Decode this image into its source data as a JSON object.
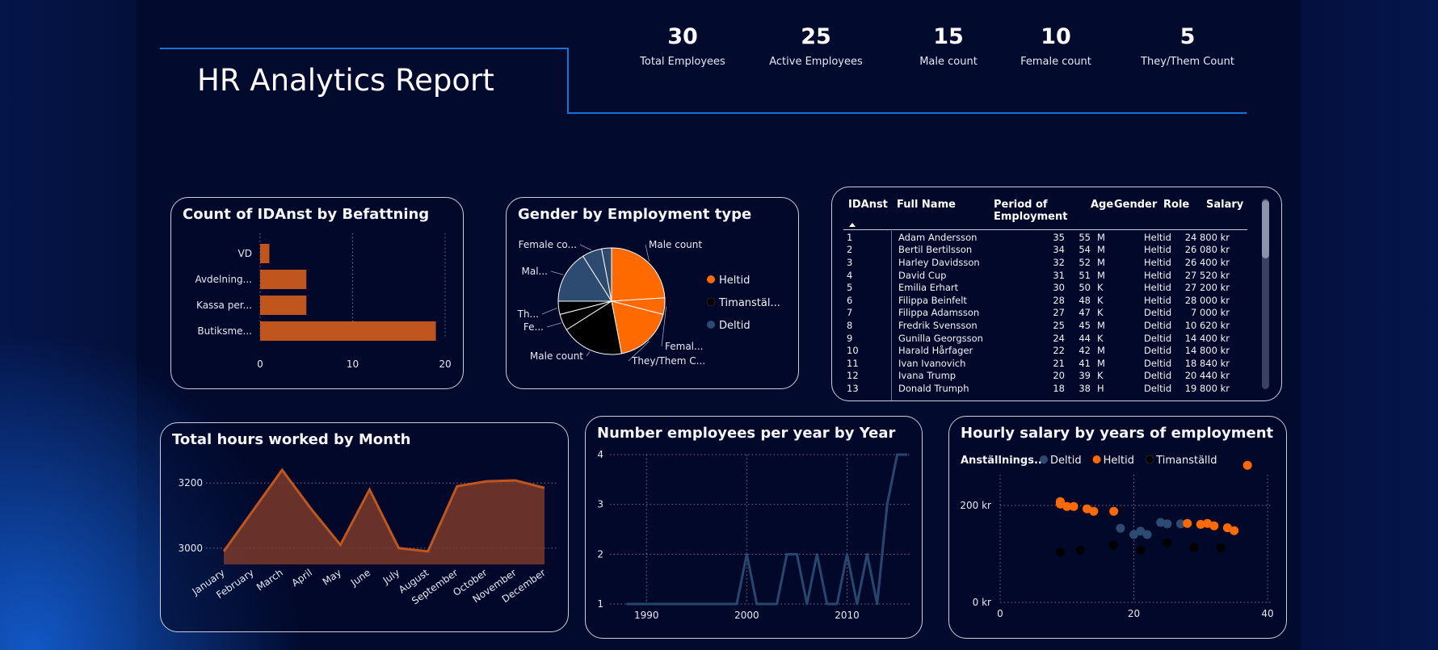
{
  "header": {
    "title": "HR Analytics Report"
  },
  "kpis": [
    {
      "value": "30",
      "label": "Total Employees"
    },
    {
      "value": "25",
      "label": "Active Employees"
    },
    {
      "value": "15",
      "label": "Male count"
    },
    {
      "value": "10",
      "label": "Female count"
    },
    {
      "value": "5",
      "label": "They/Them Count"
    }
  ],
  "colors": {
    "accent_line": "#1673d8",
    "bar": "#c0561e",
    "orange": "#ff6a00",
    "deltid": "#2d4a70",
    "timanstalld": "#000000",
    "line": "#27486e"
  },
  "chart_data": [
    {
      "id": "befattning",
      "type": "bar",
      "orientation": "horizontal",
      "title": "Count of IDAnst by Befattning",
      "categories": [
        "VD",
        "Avdelning...",
        "Kassa per...",
        "Butiksme..."
      ],
      "values": [
        1,
        5,
        5,
        19
      ],
      "xlim": [
        0,
        20
      ],
      "xticks": [
        "0",
        "10",
        "20"
      ]
    },
    {
      "id": "gender_pie",
      "type": "pie",
      "title": "Gender by Employment type",
      "slices": [
        {
          "label": "Male count",
          "group": "Heltid",
          "value": 0.24
        },
        {
          "label": "Femal...",
          "group": "Heltid",
          "value": 0.05
        },
        {
          "label": "They/Them C...",
          "group": "Heltid",
          "value": 0.18
        },
        {
          "label": "Male count",
          "group": "Timanställd",
          "value": 0.19
        },
        {
          "label": "Fe...",
          "group": "Timanställd",
          "value": 0.05
        },
        {
          "label": "Th...",
          "group": "Timanställd",
          "value": 0.04
        },
        {
          "label": "Mal...",
          "group": "Deltid",
          "value": 0.16
        },
        {
          "label": "Female co...",
          "group": "Deltid",
          "value": 0.06
        },
        {
          "label": "",
          "group": "Deltid",
          "value": 0.03
        }
      ],
      "legend": [
        {
          "label": "Heltid",
          "color": "#ff6a00"
        },
        {
          "label": "Timanstäl...",
          "color": "#000000"
        },
        {
          "label": "Deltid",
          "color": "#2d4a70"
        }
      ],
      "legend_position": "right"
    },
    {
      "id": "employees_table",
      "type": "table",
      "columns": [
        "IDAnst",
        "Full Name",
        "Period of Employment",
        "Age",
        "Gender",
        "Role",
        "Salary"
      ],
      "rows": [
        [
          "1",
          "Adam Andersson",
          "35",
          "55",
          "M",
          "Heltid",
          "24 800 kr"
        ],
        [
          "2",
          "Bertil Bertilsson",
          "34",
          "54",
          "M",
          "Heltid",
          "26 080 kr"
        ],
        [
          "3",
          "Harley Davidsson",
          "32",
          "52",
          "M",
          "Heltid",
          "26 400 kr"
        ],
        [
          "4",
          "David Cup",
          "31",
          "51",
          "M",
          "Heltid",
          "27 520 kr"
        ],
        [
          "5",
          "Emilia Erhart",
          "30",
          "50",
          "K",
          "Heltid",
          "27 200 kr"
        ],
        [
          "6",
          "Filippa Beinfelt",
          "28",
          "48",
          "K",
          "Heltid",
          "28 000 kr"
        ],
        [
          "7",
          "Filippa Adamsson",
          "27",
          "47",
          "K",
          "Deltid",
          "7 000 kr"
        ],
        [
          "8",
          "Fredrik Svensson",
          "25",
          "45",
          "M",
          "Deltid",
          "10 620 kr"
        ],
        [
          "9",
          "Gunilla Georgsson",
          "24",
          "44",
          "K",
          "Deltid",
          "14 400 kr"
        ],
        [
          "10",
          "Harald Hårfager",
          "22",
          "42",
          "M",
          "Deltid",
          "14 800 kr"
        ],
        [
          "11",
          "Ivan Ivanovich",
          "21",
          "41",
          "M",
          "Deltid",
          "18 840 kr"
        ],
        [
          "12",
          "Ivana Trump",
          "20",
          "39",
          "K",
          "Deltid",
          "20 440 kr"
        ],
        [
          "13",
          "Donald Trumph",
          "18",
          "38",
          "H",
          "Deltid",
          "19 800 kr"
        ]
      ]
    },
    {
      "id": "hours_month",
      "type": "area",
      "title": "Total hours worked by Month",
      "categories": [
        "January",
        "February",
        "March",
        "April",
        "May",
        "June",
        "July",
        "August",
        "September",
        "October",
        "November",
        "December"
      ],
      "values": [
        2990,
        3115,
        3240,
        3120,
        3010,
        3180,
        3000,
        2990,
        3190,
        3205,
        3208,
        3185
      ],
      "ylim": [
        2950,
        3260
      ],
      "yticks": [
        "3000",
        "3200"
      ]
    },
    {
      "id": "employees_year",
      "type": "line",
      "title": "Number employees per year by Year",
      "x": [
        1988,
        1989,
        1990,
        1991,
        1992,
        1993,
        1994,
        1995,
        1996,
        1997,
        1998,
        1999,
        2000,
        2001,
        2002,
        2003,
        2004,
        2005,
        2006,
        2007,
        2008,
        2009,
        2010,
        2011,
        2012,
        2013,
        2014,
        2015,
        2016
      ],
      "values": [
        1,
        1,
        1,
        1,
        1,
        1,
        1,
        1,
        1,
        1,
        1,
        1,
        2,
        1,
        1,
        1,
        2,
        2,
        1,
        2,
        1,
        1,
        2,
        1,
        2,
        1,
        3,
        4,
        4
      ],
      "xlim": [
        1987,
        2016
      ],
      "ylim": [
        1,
        4
      ],
      "xticks": [
        "1990",
        "2000",
        "2010"
      ],
      "yticks": [
        "1",
        "2",
        "3",
        "4"
      ]
    },
    {
      "id": "salary_years",
      "type": "scatter",
      "title": "Hourly salary by years of employment",
      "legend_title": "Anställnings...",
      "legend_position": "top-left",
      "series": [
        {
          "name": "Deltid",
          "color": "#2d4a70",
          "points": [
            [
              18,
              153
            ],
            [
              20,
              140
            ],
            [
              21,
              147
            ],
            [
              22,
              140
            ],
            [
              24,
              165
            ],
            [
              25,
              162
            ],
            [
              27,
              162
            ]
          ]
        },
        {
          "name": "Heltid",
          "color": "#ff6a00",
          "points": [
            [
              9,
              208
            ],
            [
              9,
              203
            ],
            [
              10,
              198
            ],
            [
              11,
              198
            ],
            [
              13,
              193
            ],
            [
              14,
              188
            ],
            [
              17,
              188
            ],
            [
              28,
              163
            ],
            [
              30,
              161
            ],
            [
              31,
              163
            ],
            [
              32,
              158
            ],
            [
              34,
              154
            ],
            [
              35,
              148
            ],
            [
              37,
              283
            ]
          ]
        },
        {
          "name": "Timanställd",
          "color": "#000000",
          "points": [
            [
              9,
              103
            ],
            [
              12,
              108
            ],
            [
              17,
              118
            ],
            [
              21,
              108
            ],
            [
              25,
              123
            ],
            [
              29,
              113
            ],
            [
              33,
              113
            ]
          ]
        }
      ],
      "xlim": [
        0,
        40
      ],
      "ylim": [
        0,
        300
      ],
      "xticks": [
        "0",
        "20",
        "40"
      ],
      "yticks": [
        "0 kr",
        "200 kr"
      ]
    }
  ]
}
